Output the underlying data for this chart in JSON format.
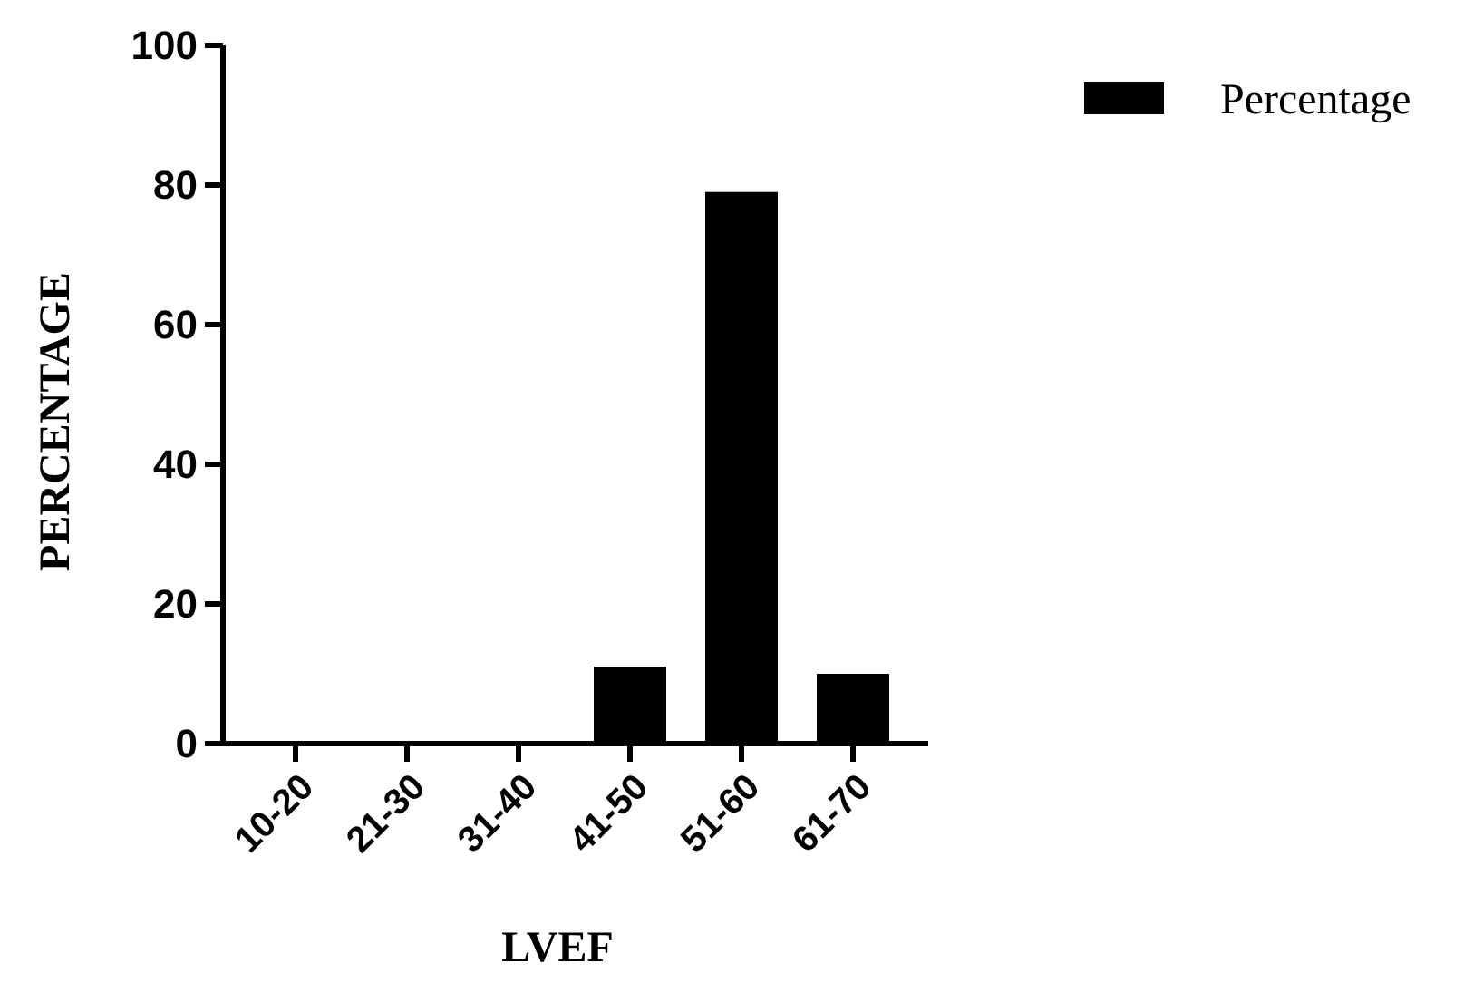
{
  "chart_data": {
    "type": "bar",
    "xlabel": "LVEF",
    "ylabel": "PERCENTAGE",
    "categories": [
      "10-20",
      "21-30",
      "31-40",
      "41-50",
      "51-60",
      "61-70"
    ],
    "series": [
      {
        "name": "Percentage",
        "color": "#000000",
        "values": [
          0,
          0,
          0,
          11,
          79,
          10
        ]
      }
    ],
    "ylim": [
      0,
      100
    ],
    "yticks": [
      0,
      20,
      40,
      60,
      80,
      100
    ],
    "legend": "top right",
    "grid": false
  }
}
